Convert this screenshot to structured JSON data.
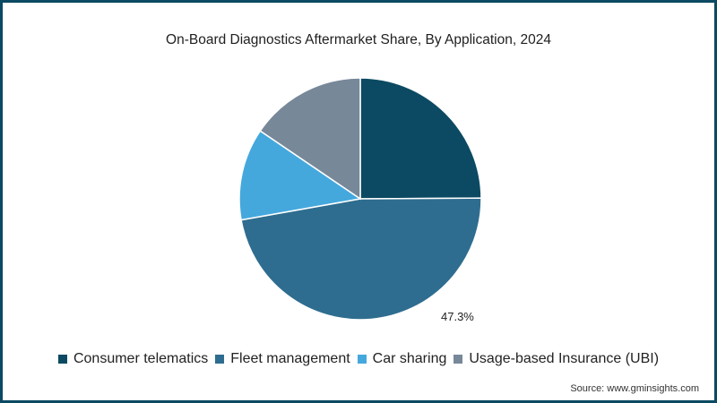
{
  "title": "On-Board Diagnostics Aftermarket Share, By Application, 2024",
  "source": "Source: www.gminsights.com",
  "data_label": "47.3%",
  "legend": [
    {
      "label": "Consumer telematics",
      "color": "#0b4a62"
    },
    {
      "label": "Fleet management",
      "color": "#2e6d8f"
    },
    {
      "label": "Car sharing",
      "color": "#45a8dd"
    },
    {
      "label": "Usage-based Insurance (UBI)",
      "color": "#778899"
    }
  ],
  "chart_data": {
    "type": "pie",
    "title": "On-Board Diagnostics Aftermarket Share, By Application, 2024",
    "categories": [
      "Consumer telematics",
      "Fleet management",
      "Car sharing",
      "Usage-based Insurance (UBI)"
    ],
    "values": [
      24.9,
      47.3,
      12.3,
      15.5
    ],
    "unit": "%",
    "annotations": [
      "47.3% (Fleet management)"
    ],
    "legend_position": "bottom",
    "colors": [
      "#0b4a62",
      "#2e6d8f",
      "#45a8dd",
      "#778899"
    ]
  }
}
